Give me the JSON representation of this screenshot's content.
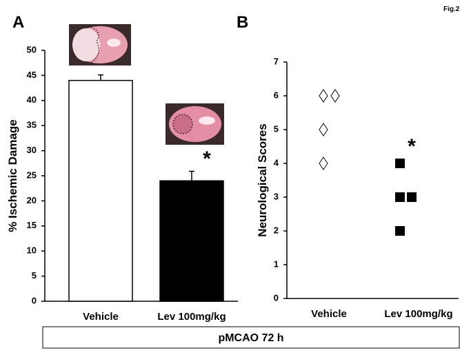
{
  "figure_label": "Fig.2",
  "footer": "pMCAO 72 h",
  "chart_data": [
    {
      "type": "bar",
      "panel": "A",
      "y_label": "% Ischemic Damage",
      "categories": [
        "Vehicle",
        "Lev 100mg/kg"
      ],
      "values": [
        44,
        24
      ],
      "errors": [
        1.1,
        1.9
      ],
      "colors": [
        "#ffffff",
        "#000000"
      ],
      "annotation": "*",
      "ylim": [
        0,
        50
      ],
      "yticks": [
        0,
        5,
        10,
        15,
        20,
        25,
        30,
        35,
        40,
        45,
        50
      ]
    },
    {
      "type": "scatter",
      "panel": "B",
      "y_label": "Neurological Scores",
      "categories": [
        "Vehicle",
        "Lev 100mg/kg"
      ],
      "series": [
        {
          "marker": "diamond",
          "color": "#ffffff",
          "values": [
            6,
            6,
            5,
            4
          ]
        },
        {
          "marker": "square",
          "color": "#000000",
          "values": [
            4,
            3,
            3,
            2
          ]
        }
      ],
      "annotation": "*",
      "ylim": [
        0,
        7
      ],
      "yticks": [
        0,
        1,
        2,
        3,
        4,
        5,
        6,
        7
      ]
    }
  ]
}
